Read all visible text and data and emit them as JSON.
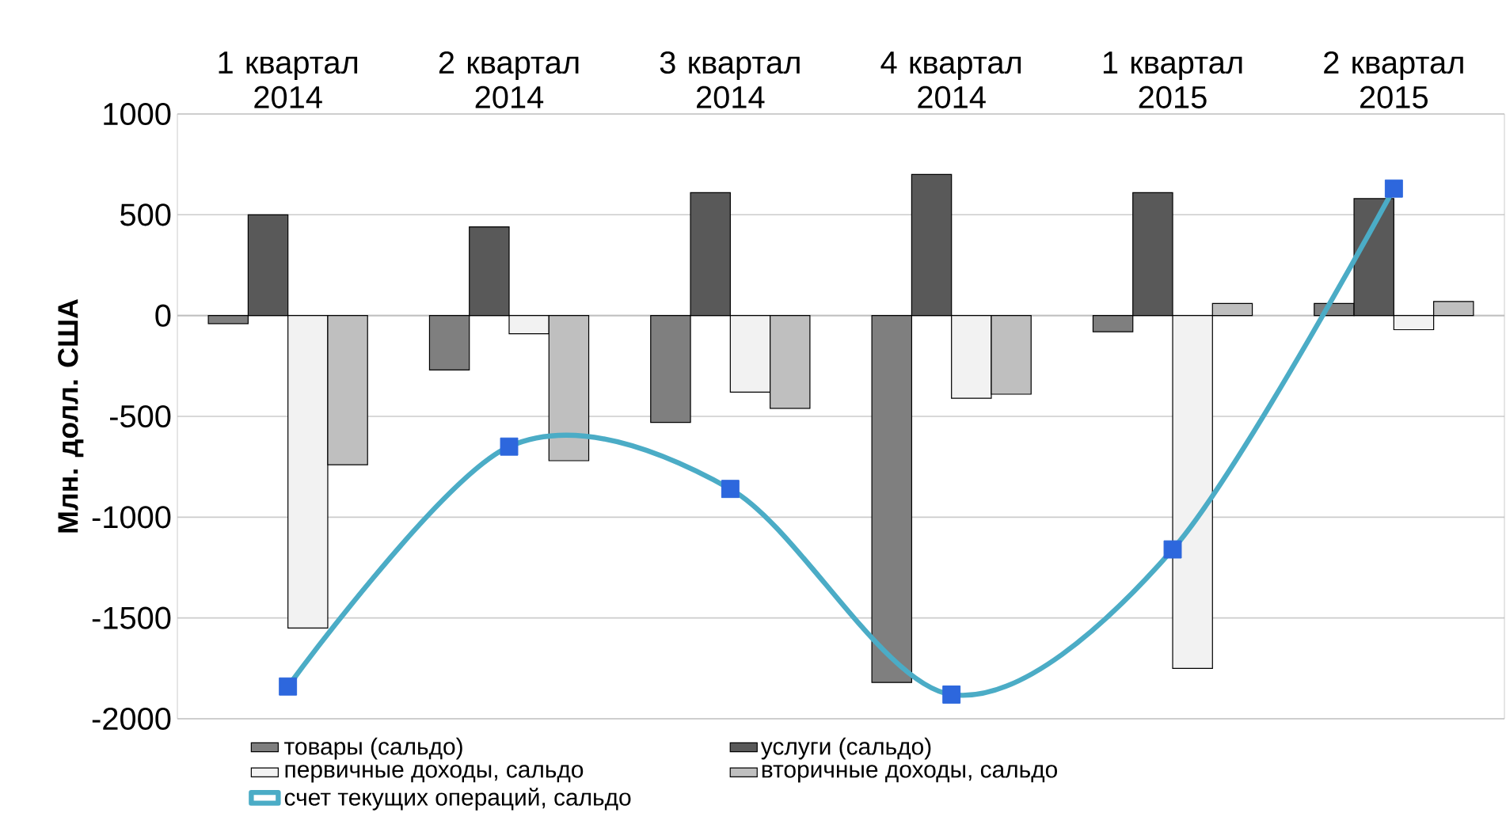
{
  "chart_data": {
    "type": "bar",
    "categories": [
      "1 квартал 2014",
      "2 квартал 2014",
      "3 квартал 2014",
      "4 квартал 2014",
      "1 квартал 2015",
      "2 квартал 2015"
    ],
    "ylabel": "Млн. долл. США",
    "ylim": [
      -2000,
      1000
    ],
    "yticks": [
      -2000,
      -1500,
      -1000,
      -500,
      0,
      500,
      1000
    ],
    "grid": "y",
    "legend": "bottom",
    "series": [
      {
        "name": "товары (сальдо)",
        "color": "#7f7f7f",
        "values": [
          -40,
          -270,
          -530,
          -1820,
          -80,
          60
        ]
      },
      {
        "name": "услуги (сальдо)",
        "color": "#595959",
        "values": [
          500,
          440,
          610,
          700,
          610,
          580
        ]
      },
      {
        "name": "первичные доходы, сальдо",
        "color": "#f2f2f2",
        "values": [
          -1550,
          -90,
          -380,
          -410,
          -1750,
          -70
        ]
      },
      {
        "name": "вторичные доходы, сальдо",
        "color": "#bfbfbf",
        "values": [
          -740,
          -720,
          -460,
          -390,
          60,
          70
        ]
      },
      {
        "name": "счет текущих операций, сальдо",
        "type": "line",
        "color": "#4bacc6",
        "marker": "square",
        "line_style": "solid",
        "values": [
          -1840,
          -650,
          -860,
          -1880,
          -1160,
          630
        ]
      }
    ]
  }
}
